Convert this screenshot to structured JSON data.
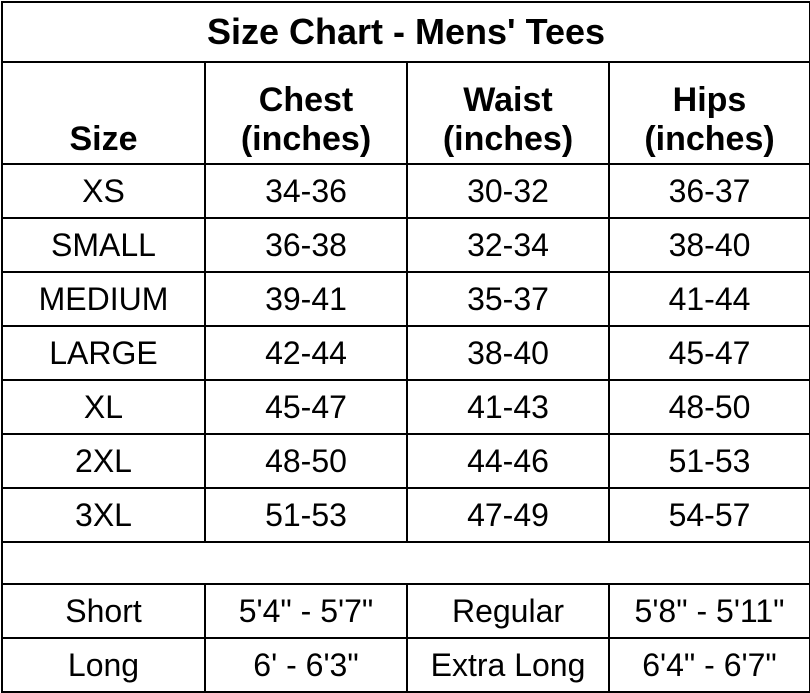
{
  "title": "Size Chart - Mens' Tees",
  "headers": [
    {
      "line1": "",
      "line2": "Size"
    },
    {
      "line1": "Chest",
      "line2": "(inches)"
    },
    {
      "line1": "Waist",
      "line2": "(inches)"
    },
    {
      "line1": "Hips",
      "line2": "(inches)"
    }
  ],
  "rows": [
    [
      "XS",
      "34-36",
      "30-32",
      "36-37"
    ],
    [
      "SMALL",
      "36-38",
      "32-34",
      "38-40"
    ],
    [
      "MEDIUM",
      "39-41",
      "35-37",
      "41-44"
    ],
    [
      "LARGE",
      "42-44",
      "38-40",
      "45-47"
    ],
    [
      "XL",
      "45-47",
      "41-43",
      "48-50"
    ],
    [
      "2XL",
      "48-50",
      "44-46",
      "51-53"
    ],
    [
      "3XL",
      "51-53",
      "47-49",
      "54-57"
    ]
  ],
  "lengths": [
    [
      "Short",
      "5'4\" - 5'7\"",
      "Regular",
      "5'8\" - 5'11\""
    ],
    [
      "Long",
      "6' - 6'3\"",
      "Extra Long",
      "6'4\" - 6'7\""
    ]
  ]
}
